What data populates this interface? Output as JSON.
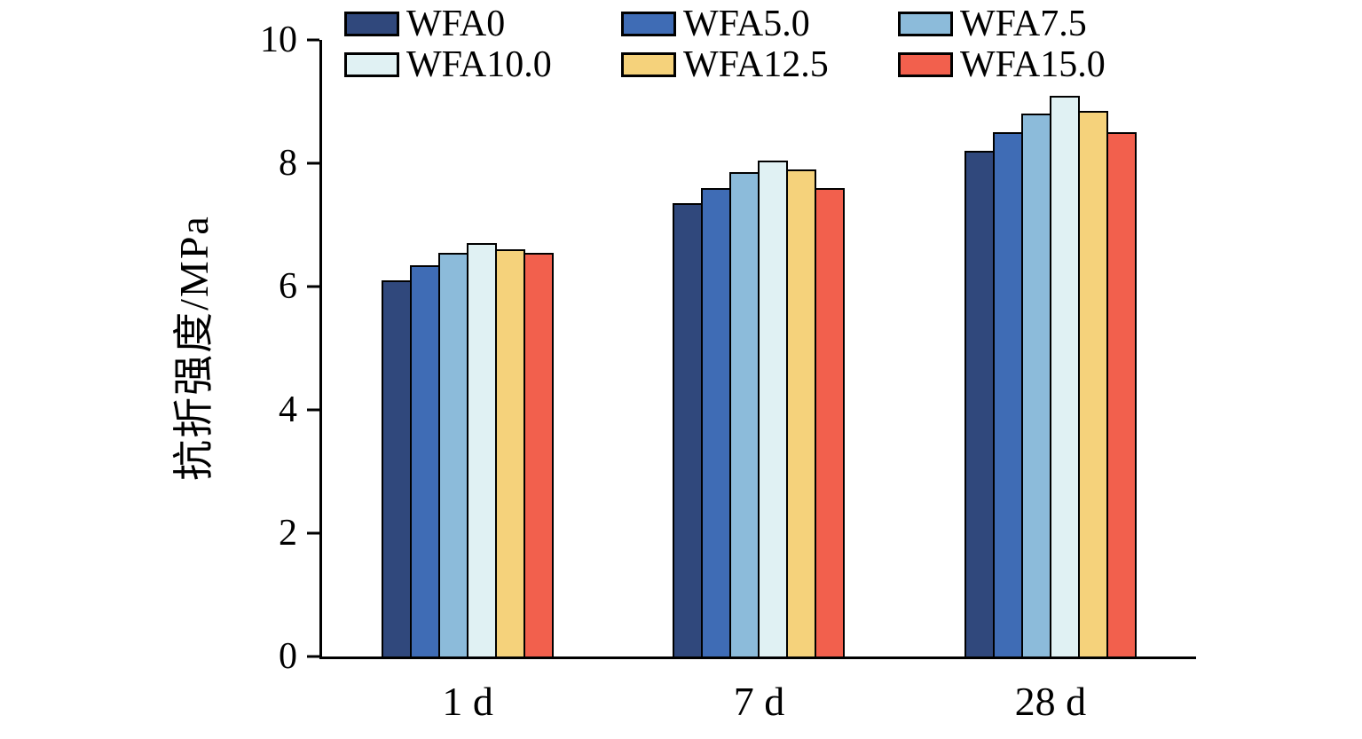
{
  "chart_data": {
    "type": "bar",
    "title": "",
    "xlabel": "",
    "ylabel": "抗折强度/MPa",
    "categories": [
      "1 d",
      "7 d",
      "28 d"
    ],
    "series": [
      {
        "name": "WFA0",
        "color": "#30487C",
        "values": [
          6.1,
          7.35,
          8.2
        ]
      },
      {
        "name": "WFA5.0",
        "color": "#3F6CB5",
        "values": [
          6.35,
          7.6,
          8.5
        ]
      },
      {
        "name": "WFA7.5",
        "color": "#8CBBDA",
        "values": [
          6.55,
          7.85,
          8.8
        ]
      },
      {
        "name": "WFA10.0",
        "color": "#E0F1F3",
        "values": [
          6.7,
          8.05,
          9.1
        ]
      },
      {
        "name": "WFA12.5",
        "color": "#F5D27B",
        "values": [
          6.6,
          7.9,
          8.85
        ]
      },
      {
        "name": "WFA15.0",
        "color": "#F2604D",
        "values": [
          6.55,
          7.6,
          8.5
        ]
      }
    ],
    "ylim": [
      0,
      10
    ],
    "yticks": [
      0,
      2,
      4,
      6,
      8,
      10
    ],
    "grid": false,
    "legend_position": "top",
    "bar_border_color": "#000000",
    "axis_color": "#000000"
  }
}
